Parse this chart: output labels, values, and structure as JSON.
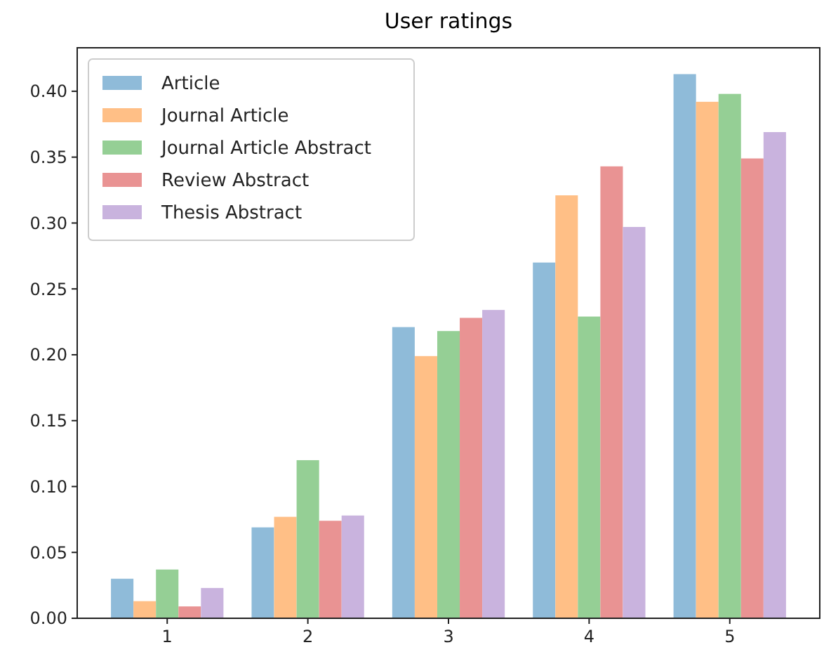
{
  "chart_data": {
    "type": "bar",
    "title": "User ratings",
    "categories": [
      "1",
      "2",
      "3",
      "4",
      "5"
    ],
    "series": [
      {
        "name": "Article",
        "color": "#8fbbd9",
        "values": [
          0.03,
          0.069,
          0.221,
          0.27,
          0.413
        ]
      },
      {
        "name": "Journal Article",
        "color": "#ffbf86",
        "values": [
          0.013,
          0.077,
          0.199,
          0.321,
          0.392
        ]
      },
      {
        "name": "Journal Article Abstract",
        "color": "#95cf95",
        "values": [
          0.037,
          0.12,
          0.218,
          0.229,
          0.398
        ]
      },
      {
        "name": "Review Abstract",
        "color": "#e99393",
        "values": [
          0.009,
          0.074,
          0.228,
          0.343,
          0.349
        ]
      },
      {
        "name": "Thesis Abstract",
        "color": "#c9b3de",
        "values": [
          0.023,
          0.078,
          0.234,
          0.297,
          0.369
        ]
      }
    ],
    "ylim": [
      0,
      0.433
    ],
    "yticks": [
      {
        "value": 0,
        "label": "0.00"
      },
      {
        "value": 0.05,
        "label": "0.05"
      },
      {
        "value": 0.1,
        "label": "0.10"
      },
      {
        "value": 0.15,
        "label": "0.15"
      },
      {
        "value": 0.2,
        "label": "0.20"
      },
      {
        "value": 0.25,
        "label": "0.25"
      },
      {
        "value": 0.3,
        "label": "0.30"
      },
      {
        "value": 0.35,
        "label": "0.35"
      },
      {
        "value": 0.4,
        "label": "0.40"
      }
    ],
    "legend": "top left",
    "grid": false
  }
}
